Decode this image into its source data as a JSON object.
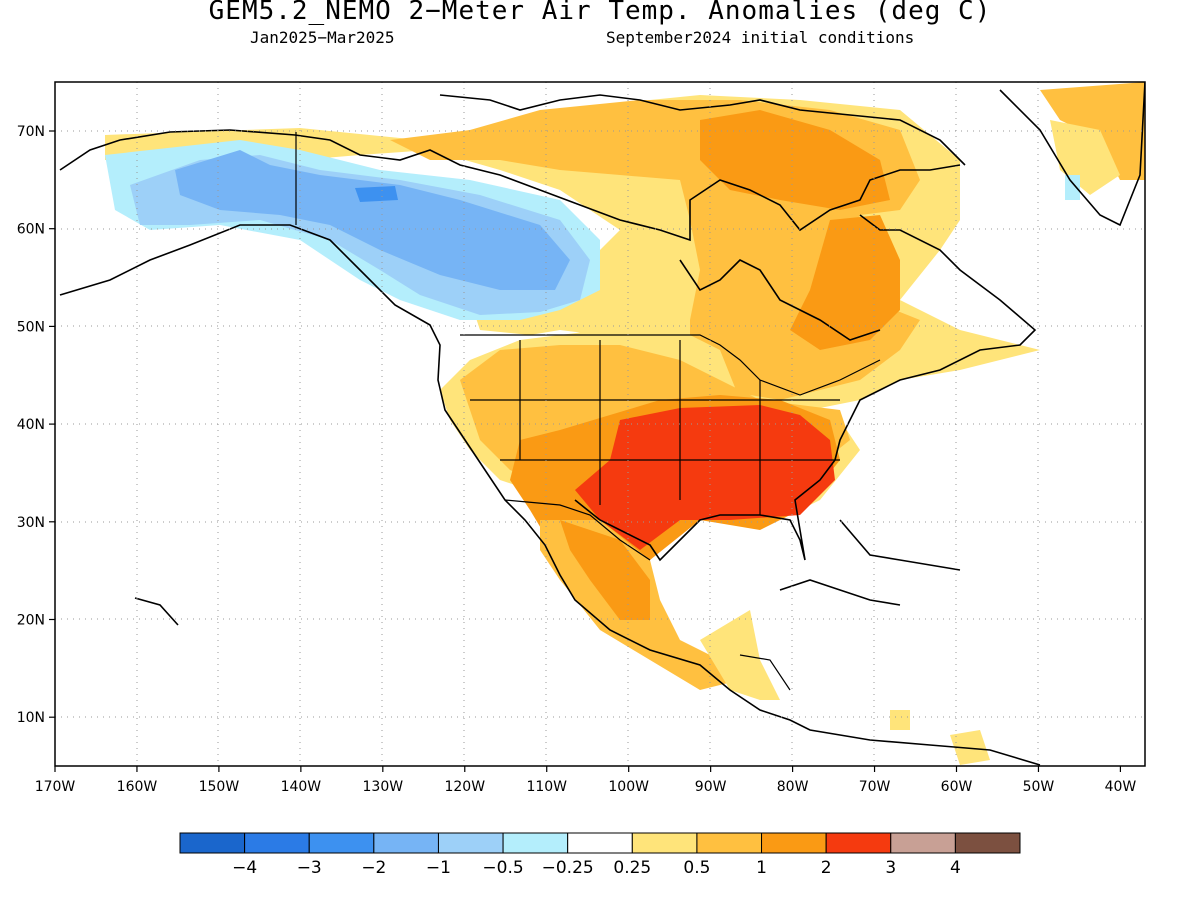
{
  "title": "GEM5.2_NEMO 2−Meter Air Temp. Anomalies (deg C)",
  "period": "Jan2025−Mar2025",
  "init": "September2024 initial conditions",
  "longitudes": [
    "170W",
    "160W",
    "150W",
    "140W",
    "130W",
    "120W",
    "110W",
    "100W",
    "90W",
    "80W",
    "70W",
    "60W",
    "50W",
    "40W"
  ],
  "latitudes": [
    "70N",
    "60N",
    "50N",
    "40N",
    "30N",
    "20N",
    "10N"
  ],
  "colorbar": {
    "labels": [
      "−4",
      "−3",
      "−2",
      "−1",
      "−0.5",
      "−0.25",
      "0.25",
      "0.5",
      "1",
      "2",
      "3",
      "4"
    ],
    "colors": [
      "#1a66cc",
      "#2b7be6",
      "#3d91f0",
      "#76b4f5",
      "#9dd0f8",
      "#b4eefc",
      "#ffffff",
      "#ffe47a",
      "#ffc040",
      "#fa9a14",
      "#f53a0f",
      "#c8a095",
      "#7c5040"
    ]
  },
  "regions": [
    {
      "name": "alaska-cold-anomaly",
      "value": "−1"
    },
    {
      "name": "western-canada-cold-anomaly",
      "value": "−2"
    },
    {
      "name": "southeast-us-warm-anomaly",
      "value": "3"
    },
    {
      "name": "eastern-canada-warm-anomaly",
      "value": "1"
    }
  ]
}
